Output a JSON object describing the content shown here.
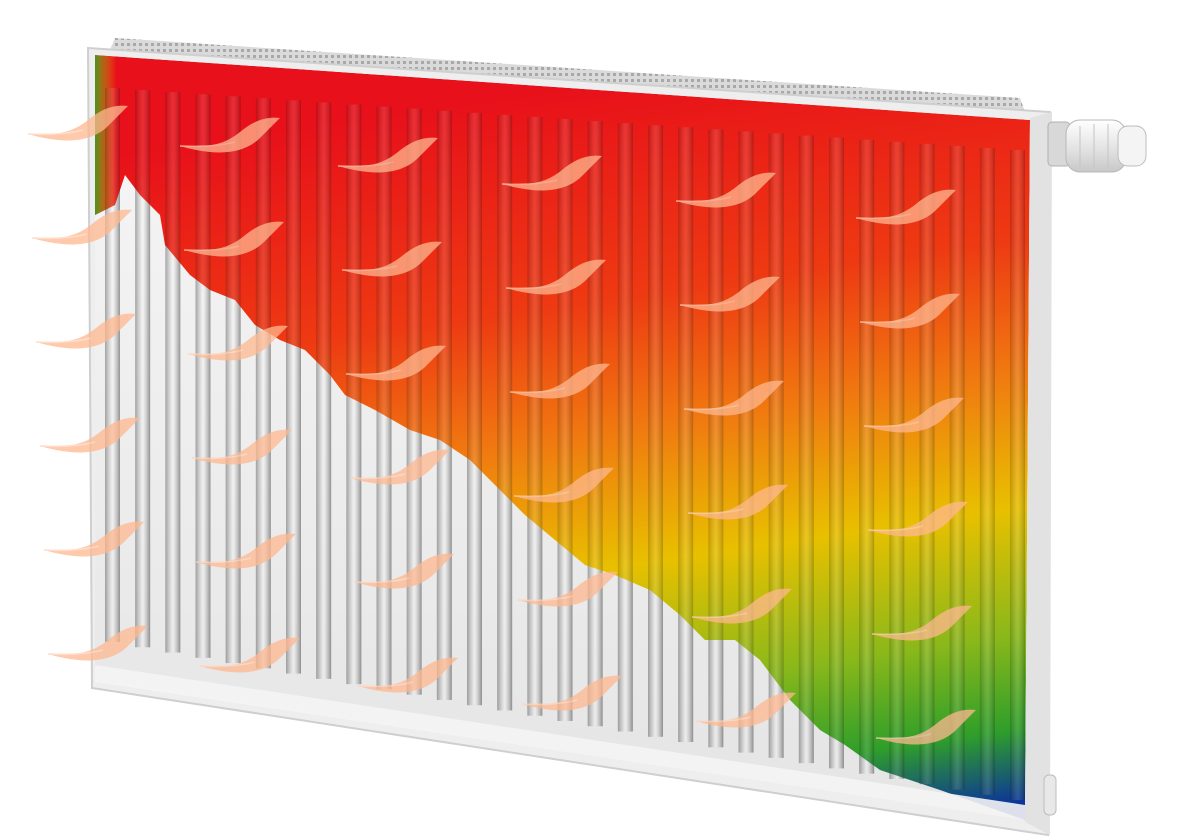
{
  "image": {
    "subject": "radiator-thermal-image",
    "colors": {
      "background": "#ffffff",
      "panel_white": "#f2f2f2",
      "hot": "#e8101a",
      "warm": "#f07a10",
      "mid": "#e8c000",
      "cool": "#3aa020",
      "cold": "#0a2ea0",
      "heat_wave": "#ffb890"
    },
    "icons": [
      "heat-wave-icon",
      "thermostat-valve-icon"
    ]
  }
}
